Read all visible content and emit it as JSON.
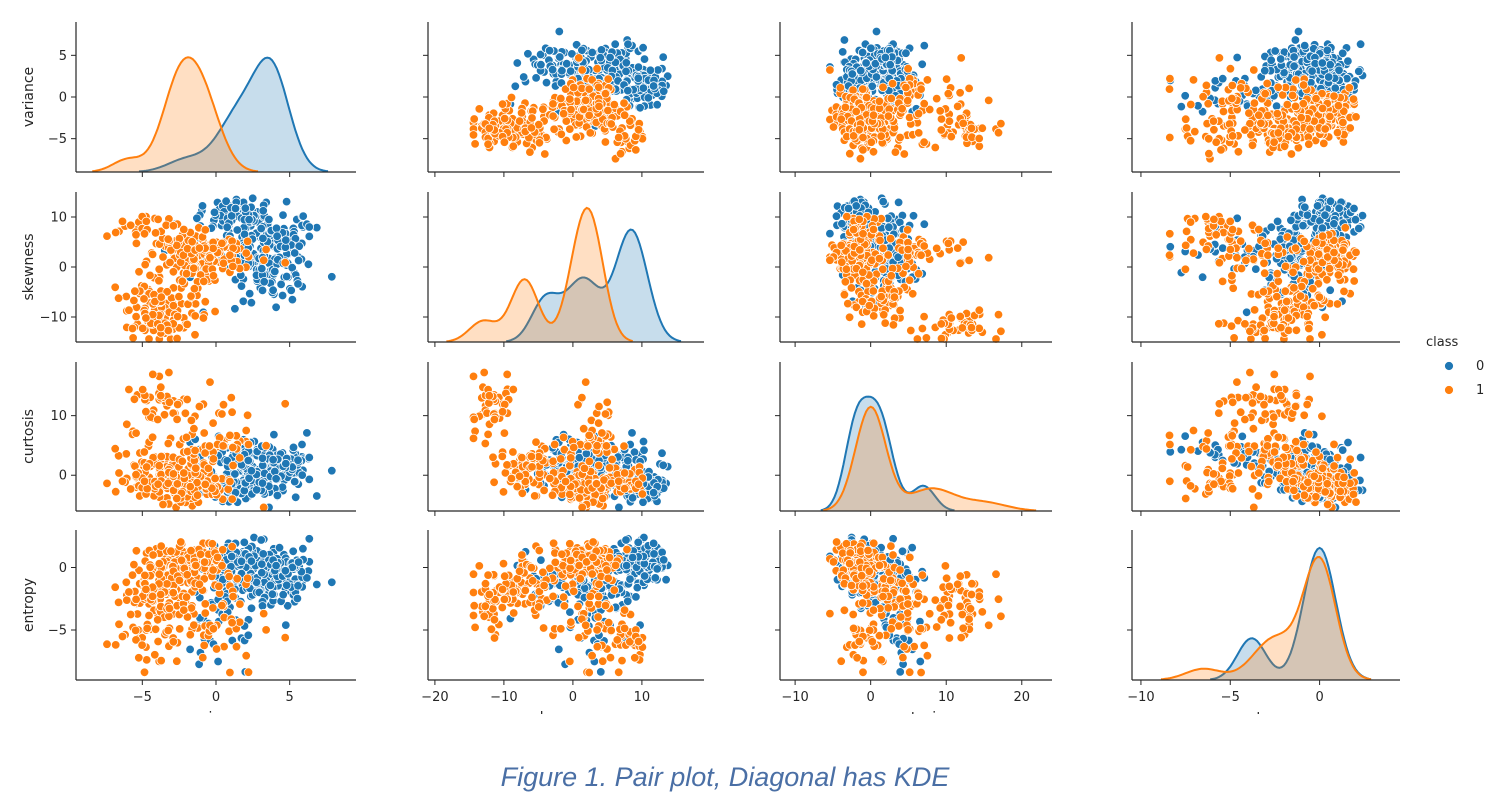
{
  "caption": "Figure 1. Pair plot, Diagonal has KDE",
  "chart_data": {
    "type": "scatter",
    "layout": "pairplot-4x4",
    "variables": [
      "variance",
      "skewness",
      "curtosis",
      "entropy"
    ],
    "diagonal": "kde",
    "hue": {
      "title": "class",
      "classes": [
        {
          "label": "0",
          "color": "#1f77b4"
        },
        {
          "label": "1",
          "color": "#ff7f0e"
        }
      ],
      "legend_position": "right"
    },
    "axes": {
      "variance": {
        "range": [
          -9,
          9
        ],
        "ticks": [
          -5,
          0,
          5
        ]
      },
      "skewness": {
        "range": [
          -15,
          15
        ],
        "ticks": [
          -10,
          0,
          10
        ]
      },
      "curtosis": {
        "range": [
          -6,
          19
        ],
        "ticks": [
          0,
          10
        ]
      },
      "entropy": {
        "range": [
          -9,
          3
        ],
        "ticks": [
          -5,
          0
        ]
      }
    },
    "x_axes": {
      "variance": {
        "range": [
          -9.5,
          9.5
        ],
        "ticks": [
          -5,
          0,
          5
        ]
      },
      "skewness": {
        "range": [
          -21,
          19
        ],
        "ticks": [
          -20,
          -10,
          0,
          10
        ]
      },
      "curtosis": {
        "range": [
          -12,
          24
        ],
        "ticks": [
          -10,
          0,
          10,
          20
        ]
      },
      "entropy": {
        "range": [
          -10.5,
          4.5
        ],
        "ticks": [
          -10,
          -5,
          0
        ]
      }
    },
    "kde": {
      "variance": [
        {
          "class": "0",
          "peaks": [
            {
              "x": -2.0,
              "h": 0.09,
              "w": 1.3
            },
            {
              "x": 1.5,
              "h": 0.4,
              "w": 1.4
            },
            {
              "x": 3.8,
              "h": 0.7,
              "w": 1.2
            }
          ]
        },
        {
          "class": "1",
          "peaks": [
            {
              "x": -6.0,
              "h": 0.09,
              "w": 1.0
            },
            {
              "x": -2.5,
              "h": 0.6,
              "w": 1.2
            },
            {
              "x": -0.8,
              "h": 0.45,
              "w": 1.2
            }
          ]
        }
      ],
      "skewness": [
        {
          "class": "0",
          "peaks": [
            {
              "x": -4.0,
              "h": 0.3,
              "w": 2.0
            },
            {
              "x": 1.5,
              "h": 0.45,
              "w": 2.5
            },
            {
              "x": 8.5,
              "h": 0.8,
              "w": 2.3
            }
          ]
        },
        {
          "class": "1",
          "peaks": [
            {
              "x": -13.0,
              "h": 0.15,
              "w": 2.0
            },
            {
              "x": -7.0,
              "h": 0.45,
              "w": 2.0
            },
            {
              "x": 1.0,
              "h": 0.55,
              "w": 2.0
            },
            {
              "x": 3.0,
              "h": 0.55,
              "w": 1.9
            }
          ]
        }
      ],
      "curtosis": [
        {
          "class": "0",
          "peaks": [
            {
              "x": -2.0,
              "h": 0.55,
              "w": 1.5
            },
            {
              "x": 1.0,
              "h": 0.7,
              "w": 1.8
            },
            {
              "x": 7.0,
              "h": 0.18,
              "w": 1.5
            }
          ]
        },
        {
          "class": "1",
          "peaks": [
            {
              "x": 0.0,
              "h": 0.75,
              "w": 2.0
            },
            {
              "x": 8.0,
              "h": 0.16,
              "w": 3.0
            },
            {
              "x": 15.0,
              "h": 0.06,
              "w": 3.0
            }
          ]
        }
      ],
      "entropy": [
        {
          "class": "0",
          "peaks": [
            {
              "x": -3.8,
              "h": 0.3,
              "w": 0.8
            },
            {
              "x": 0.0,
              "h": 0.95,
              "w": 0.9
            }
          ]
        },
        {
          "class": "1",
          "peaks": [
            {
              "x": -6.5,
              "h": 0.08,
              "w": 1.0
            },
            {
              "x": -2.5,
              "h": 0.3,
              "w": 1.2
            },
            {
              "x": 0.0,
              "h": 0.85,
              "w": 0.9
            }
          ]
        }
      ]
    },
    "clusters": {
      "0": [
        {
          "v": 3.5,
          "s": 5,
          "c": 1,
          "e": -0.5,
          "sv": 1.6,
          "ss": 3.5,
          "sc": 2.2,
          "se": 1.2,
          "n": 140
        },
        {
          "v": 1.0,
          "s": 10,
          "c": -2,
          "e": 0.5,
          "sv": 1.4,
          "ss": 1.5,
          "sc": 1.2,
          "se": 0.8,
          "n": 70
        },
        {
          "v": 4.0,
          "s": -2,
          "c": 2,
          "e": -1.0,
          "sv": 1.2,
          "ss": 2.5,
          "sc": 2.0,
          "se": 1.0,
          "n": 50
        },
        {
          "v": 0.0,
          "s": 3,
          "c": 3,
          "e": -5.0,
          "sv": 1.5,
          "ss": 3.0,
          "sc": 1.5,
          "se": 1.5,
          "n": 35
        }
      ],
      "1": [
        {
          "v": -2.0,
          "s": 2,
          "c": -2,
          "e": 0.5,
          "sv": 1.3,
          "ss": 2.5,
          "sc": 1.5,
          "se": 0.8,
          "n": 110
        },
        {
          "v": -3.5,
          "s": -7,
          "c": 1,
          "e": -1.5,
          "sv": 1.6,
          "ss": 2.0,
          "sc": 2.0,
          "se": 1.5,
          "n": 70
        },
        {
          "v": -4.0,
          "s": -12,
          "c": 12,
          "e": -2.5,
          "sv": 1.2,
          "ss": 1.5,
          "sc": 3.0,
          "se": 1.2,
          "n": 50
        },
        {
          "v": 0.0,
          "s": 3,
          "c": 6,
          "e": -4.0,
          "sv": 1.8,
          "ss": 2.0,
          "sc": 3.5,
          "se": 2.0,
          "n": 60
        },
        {
          "v": -5.0,
          "s": 8,
          "c": -1,
          "e": -6.0,
          "sv": 1.2,
          "ss": 1.5,
          "sc": 1.2,
          "se": 1.0,
          "n": 30
        }
      ]
    }
  }
}
